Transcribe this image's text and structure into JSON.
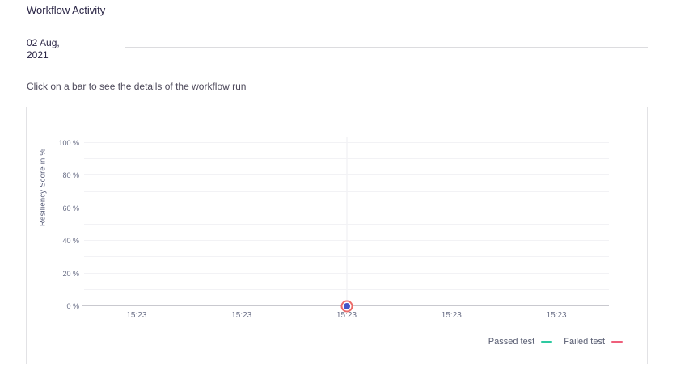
{
  "header": {
    "title": "Workflow Activity",
    "date": "02 Aug, 2021",
    "subtitle": "Click on a bar to see the details of the workflow run"
  },
  "chart_data": {
    "type": "scatter",
    "title": "",
    "xlabel": "",
    "ylabel": "Resiliency Score in %",
    "ylim": [
      0,
      100
    ],
    "yticks": [
      "100 %",
      "80 %",
      "60 %",
      "40 %",
      "20 %",
      "0 %"
    ],
    "xticks": [
      "15:23",
      "15:23",
      "15:23",
      "15:23",
      "15:23"
    ],
    "grid": {
      "horizontal_step_percent": 10,
      "vertical_line_at_tick_index": 2
    },
    "series": [
      {
        "name": "Passed test",
        "color": "#2ec9a0",
        "points": []
      },
      {
        "name": "Failed test",
        "color": "#ef5f7b",
        "points": [
          {
            "x": "15:23",
            "tick_index": 2,
            "y": 0
          }
        ]
      }
    ],
    "selected_point": {
      "x": "15:23",
      "y": 0,
      "fill_color": "#4456c7",
      "ring_color": "#ec6a68"
    },
    "legend": {
      "position": "bottom-right",
      "entries": [
        {
          "label": "Passed test",
          "color": "#2ec9a0"
        },
        {
          "label": "Failed test",
          "color": "#ef5f7b"
        }
      ]
    }
  }
}
